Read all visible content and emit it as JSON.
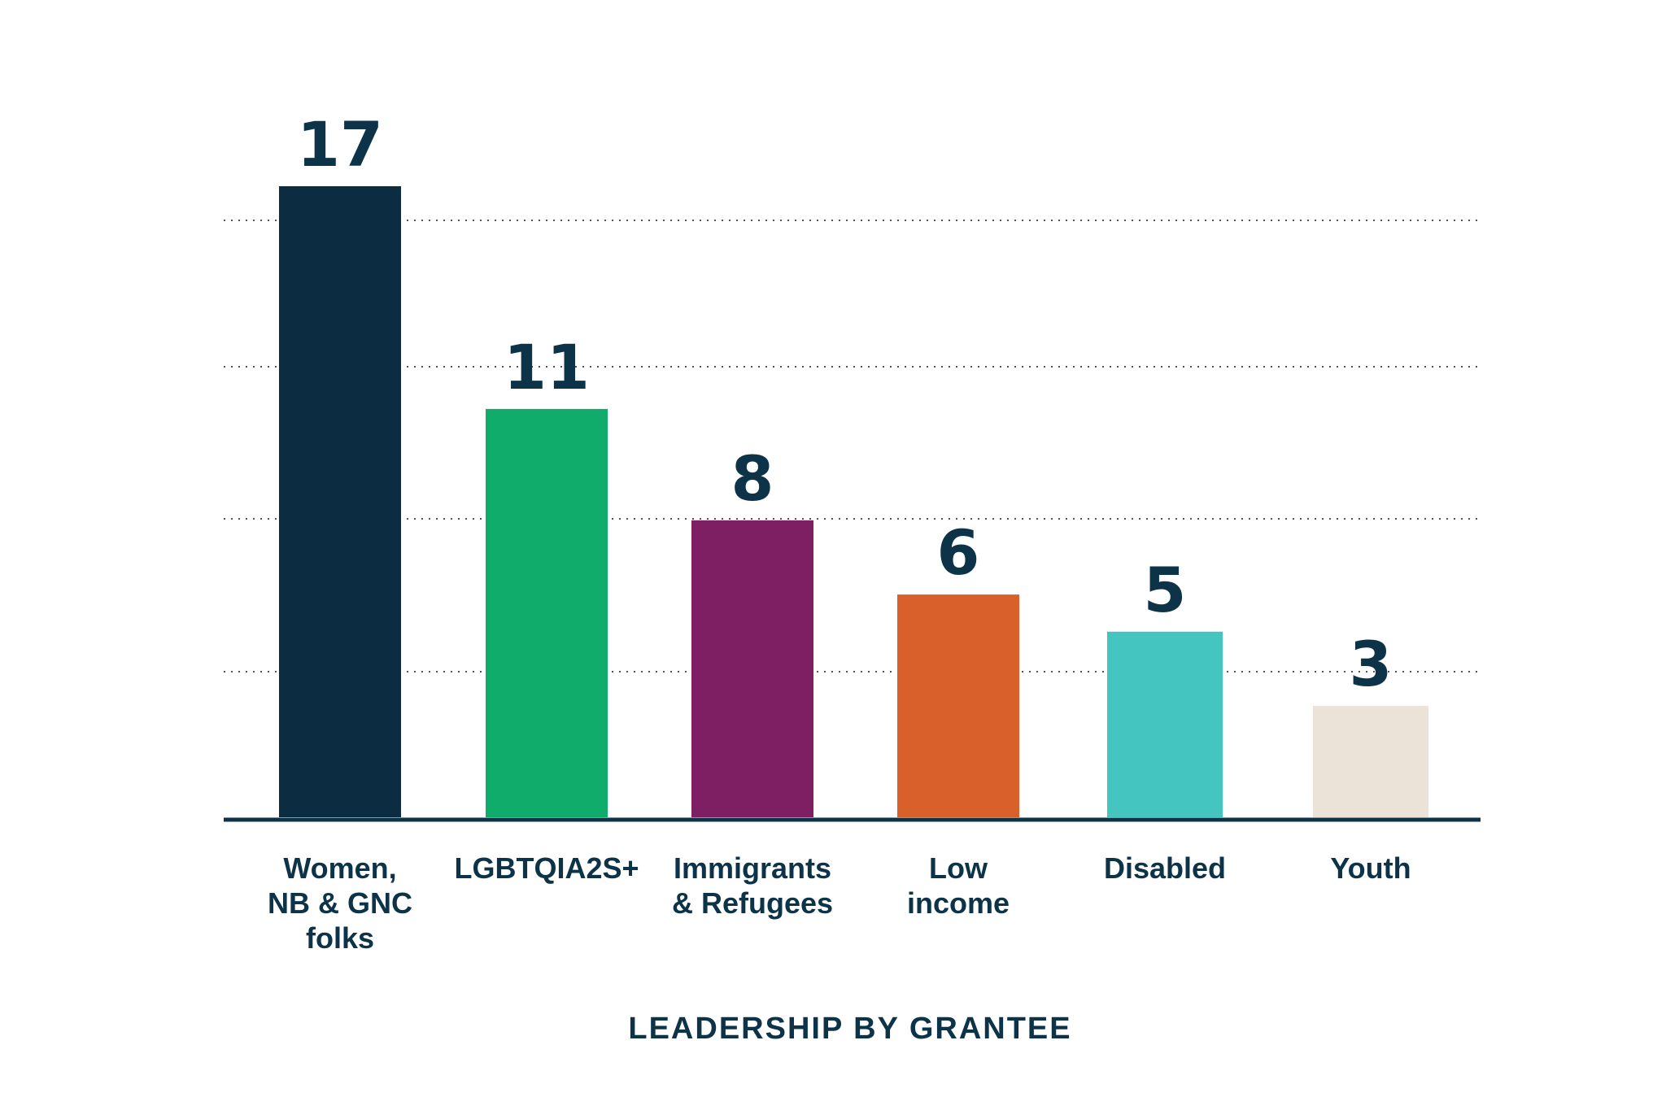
{
  "chart_data": {
    "type": "bar",
    "title": "LEADERSHIP BY GRANTEE",
    "categories": [
      [
        "Women,",
        "NB & GNC",
        "folks"
      ],
      [
        "LGBTQIA2S+"
      ],
      [
        "Immigrants",
        "& Refugees"
      ],
      [
        "Low",
        "income"
      ],
      [
        "Disabled"
      ],
      [
        "Youth"
      ]
    ],
    "values": [
      17,
      11,
      8,
      6,
      5,
      3
    ],
    "value_labels": [
      "17",
      "11",
      "8",
      "6",
      "5",
      "3"
    ],
    "colors": [
      "#0c2c41",
      "#10ac6c",
      "#7e1f63",
      "#d9602b",
      "#45c5c0",
      "#ece3d8"
    ],
    "ylim": [
      0,
      17
    ],
    "grid": true
  }
}
